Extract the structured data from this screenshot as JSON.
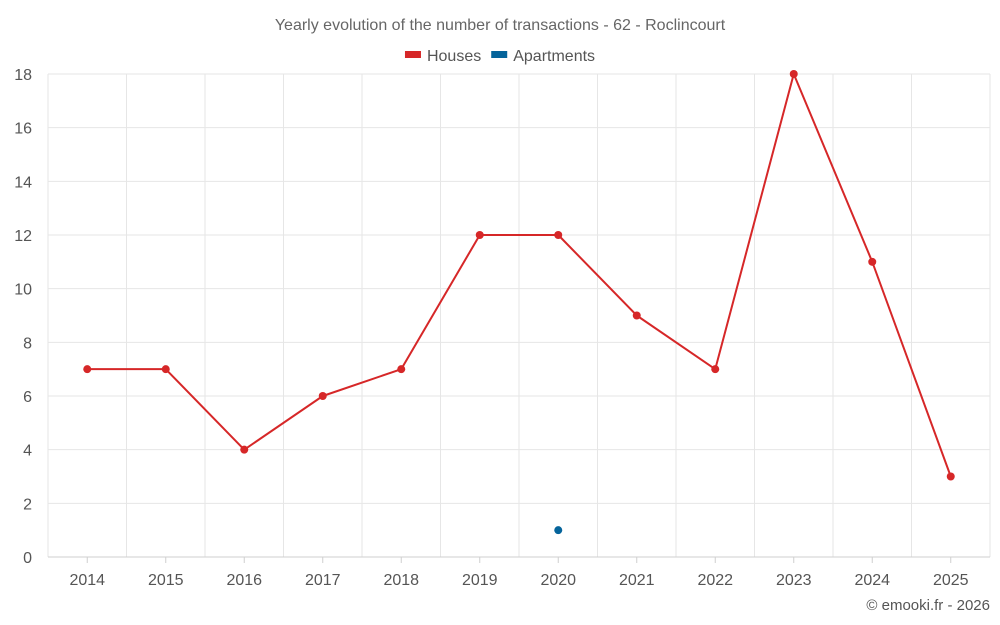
{
  "chart_data": {
    "type": "line",
    "title": "Yearly evolution of the number of transactions - 62 - Roclincourt",
    "categories": [
      "2014",
      "2015",
      "2016",
      "2017",
      "2018",
      "2019",
      "2020",
      "2021",
      "2022",
      "2023",
      "2024",
      "2025"
    ],
    "series": [
      {
        "name": "Houses",
        "color": "#d62728",
        "values": [
          7,
          7,
          4,
          6,
          7,
          12,
          12,
          9,
          7,
          18,
          11,
          3
        ]
      },
      {
        "name": "Apartments",
        "color": "#05649b",
        "values": [
          null,
          null,
          null,
          null,
          null,
          null,
          1,
          null,
          null,
          null,
          null,
          null
        ]
      }
    ],
    "ylim": [
      0,
      18
    ],
    "yticks": [
      0,
      2,
      4,
      6,
      8,
      10,
      12,
      14,
      16,
      18
    ],
    "xlabel": "",
    "ylabel": "",
    "grid": true,
    "legend_position": "top-center"
  },
  "footer": "© emooki.fr - 2026"
}
